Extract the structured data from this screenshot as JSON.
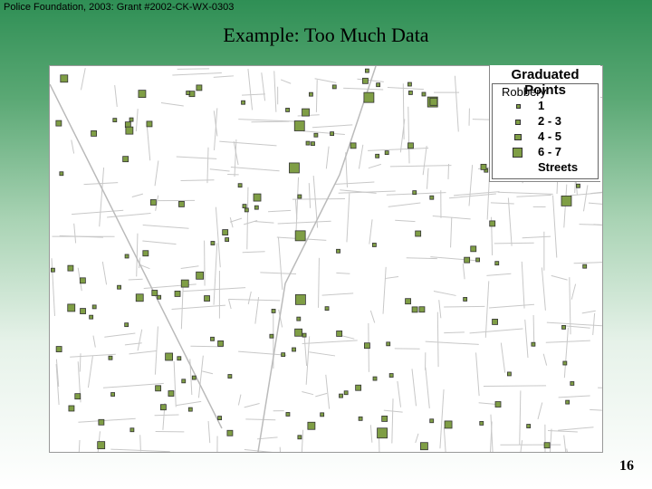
{
  "header": "Police Foundation, 2003: Grant #2002-CK-WX-0303",
  "title": "Example: Too Much Data",
  "legend": {
    "title": "Graduated Points",
    "subtitle": "Robbery",
    "items": [
      "1",
      "2 - 3",
      "4 - 5",
      "6 - 7",
      "Streets"
    ]
  },
  "page_number": "16"
}
